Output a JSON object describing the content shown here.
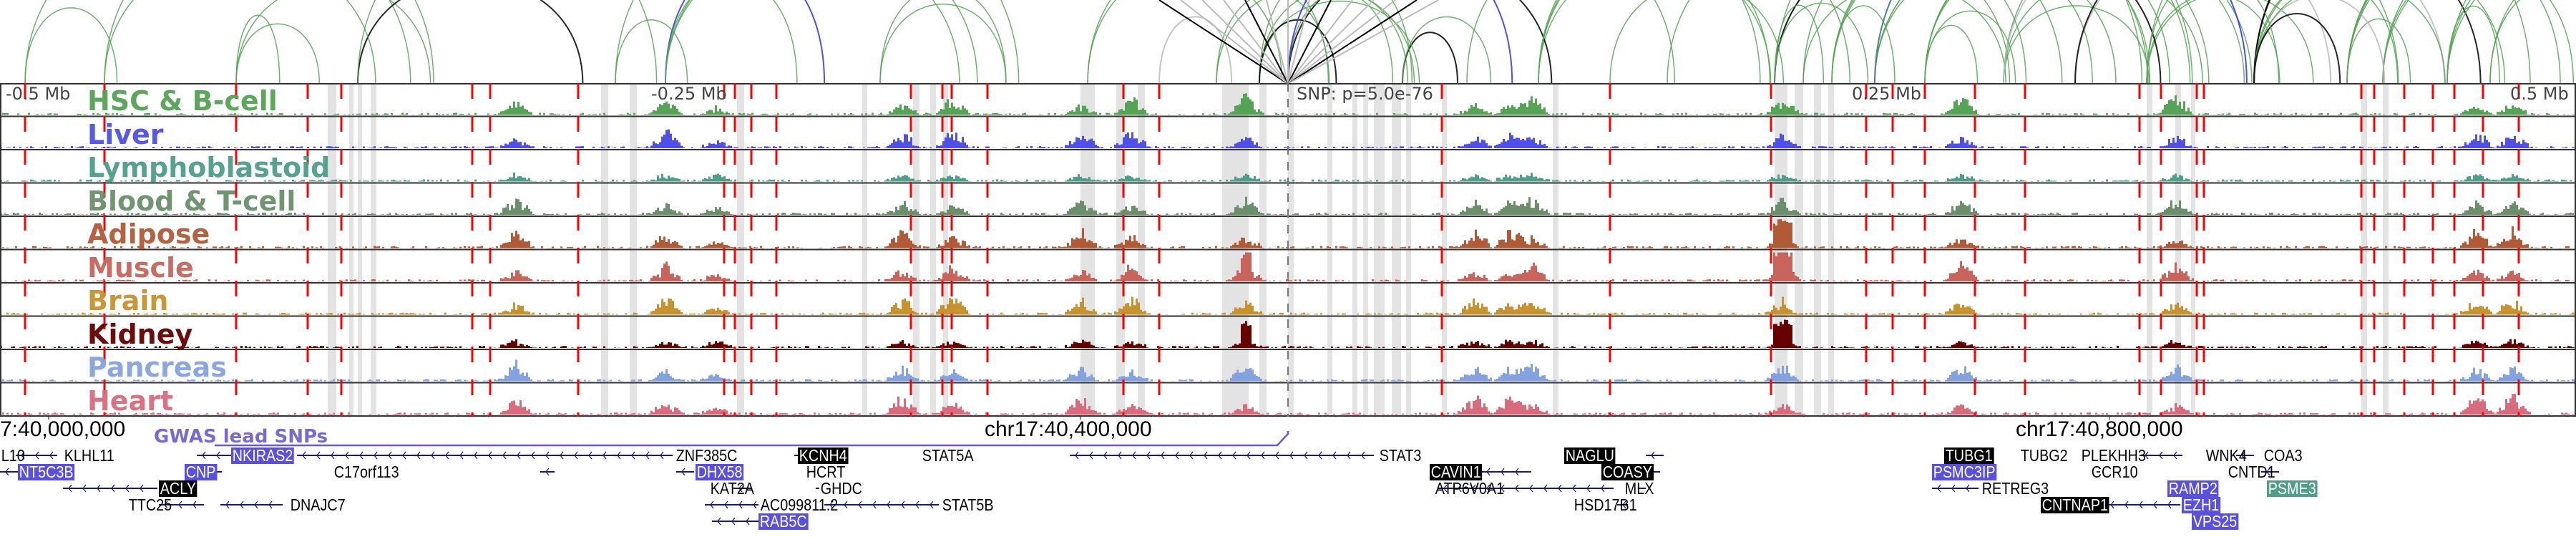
{
  "tracks": [
    {
      "label": "HSC & B-cell",
      "color": "#55a355"
    },
    {
      "label": "Liver",
      "color": "#5050e6"
    },
    {
      "label": "Lymphoblastoid",
      "color": "#4e9e8a"
    },
    {
      "label": "Blood & T-cell",
      "color": "#6a8f6a"
    },
    {
      "label": "Adipose",
      "color": "#b05a38"
    },
    {
      "label": "Muscle",
      "color": "#c8645c"
    },
    {
      "label": "Brain",
      "color": "#c8922e"
    },
    {
      "label": "Kidney",
      "color": "#660000"
    },
    {
      "label": "Pancreas",
      "color": "#85a2e0"
    },
    {
      "label": "Heart",
      "color": "#d86b7c"
    }
  ],
  "axis": {
    "minus_half": "-0.5 Mb",
    "minus_quarter": "-0.25 Mb",
    "snp": "SNP: p=5.0e-76",
    "plus_quarter": "0.25 Mb",
    "plus_half": "0.5 Mb"
  },
  "coords": {
    "c1": "7:40,000,000",
    "c2": "chr17:40,400,000",
    "c3": "chr17:40,800,000"
  },
  "gwas_label": "GWAS lead SNPs",
  "colors": {
    "lead_snp": "#6a5acd",
    "marker": "#ff0000",
    "gene": "#1a1a6e",
    "arc_green": "#55a355"
  },
  "genes": [
    {
      "name": "L10",
      "style": "none"
    },
    {
      "name": "KLHL11",
      "style": "none"
    },
    {
      "name": "NKIRAS2",
      "style": "blue"
    },
    {
      "name": "ZNF385C",
      "style": "none"
    },
    {
      "name": "KCNH4",
      "style": "black"
    },
    {
      "name": "STAT5A",
      "style": "none"
    },
    {
      "name": "STAT3",
      "style": "none"
    },
    {
      "name": "NAGLU",
      "style": "black"
    },
    {
      "name": "TUBG1",
      "style": "black"
    },
    {
      "name": "TUBG2",
      "style": "none"
    },
    {
      "name": "PLEKHH3",
      "style": "none"
    },
    {
      "name": "WNK4",
      "style": "none"
    },
    {
      "name": "COA3",
      "style": "none"
    },
    {
      "name": "NT5C3B",
      "style": "blue"
    },
    {
      "name": "CNP",
      "style": "blue"
    },
    {
      "name": "C17orf113",
      "style": "none"
    },
    {
      "name": "DHX58",
      "style": "blue"
    },
    {
      "name": "HCRT",
      "style": "none"
    },
    {
      "name": "CAVIN1",
      "style": "black"
    },
    {
      "name": "COASY",
      "style": "black"
    },
    {
      "name": "PSMC3IP",
      "style": "blue"
    },
    {
      "name": "CCR10",
      "style": "none"
    },
    {
      "name": "CNTD1",
      "style": "none"
    },
    {
      "name": "ACLY",
      "style": "black"
    },
    {
      "name": "KAT2A",
      "style": "none"
    },
    {
      "name": "GHDC",
      "style": "none"
    },
    {
      "name": "ATP6V0A1",
      "style": "none"
    },
    {
      "name": "MLX",
      "style": "none"
    },
    {
      "name": "RETREG3",
      "style": "none"
    },
    {
      "name": "RAMP2",
      "style": "blue"
    },
    {
      "name": "PSME3",
      "style": "teal"
    },
    {
      "name": "TTC25",
      "style": "none"
    },
    {
      "name": "DNAJC7",
      "style": "none"
    },
    {
      "name": "AC099811.2",
      "style": "none"
    },
    {
      "name": "STAT5B",
      "style": "none"
    },
    {
      "name": "HSD17B1",
      "style": "none"
    },
    {
      "name": "CNTNAP1",
      "style": "black"
    },
    {
      "name": "EZH1",
      "style": "blue"
    },
    {
      "name": "RAB5C",
      "style": "blue"
    },
    {
      "name": "VPS25",
      "style": "blue"
    }
  ]
}
